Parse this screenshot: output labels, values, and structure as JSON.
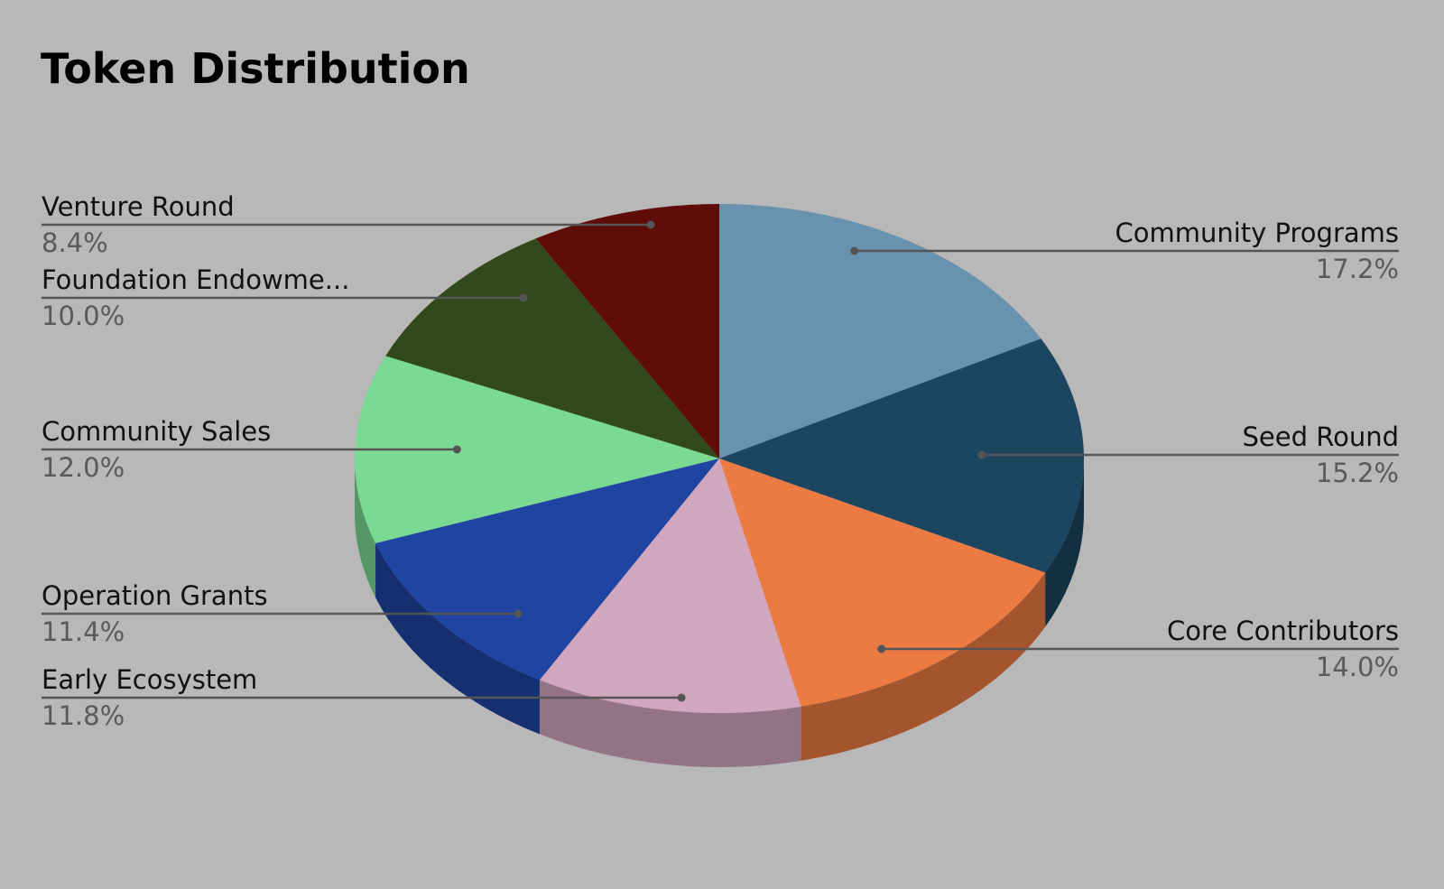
{
  "chart_data": {
    "type": "pie",
    "title": "Token Distribution",
    "categories": [
      "Community Programs",
      "Seed Round",
      "Core Contributors",
      "Early Ecosystem",
      "Operation Grants",
      "Community Sales",
      "Foundation Endowme...",
      "Venture Round"
    ],
    "values": [
      17.2,
      15.2,
      14.0,
      11.8,
      11.4,
      12.0,
      10.0,
      8.4
    ],
    "value_labels": [
      "17.2%",
      "15.2%",
      "14.0%",
      "11.8%",
      "11.4%",
      "12.0%",
      "10.0%",
      "8.4%"
    ],
    "colors": [
      "#6892ae",
      "#1c4560",
      "#ec7a43",
      "#d1a6bf",
      "#1f44a1",
      "#7ad993",
      "#32491d",
      "#5e0d0a"
    ]
  }
}
